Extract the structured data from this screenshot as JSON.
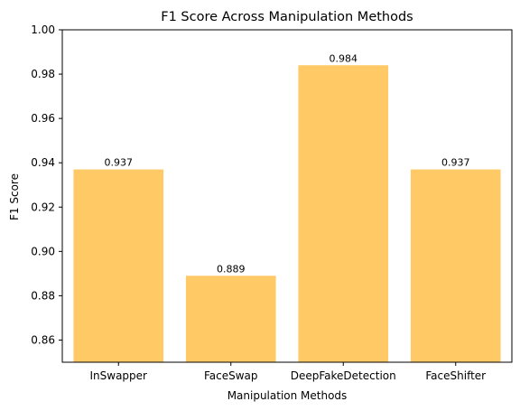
{
  "chart_data": {
    "type": "bar",
    "title": "F1 Score Across Manipulation Methods",
    "xlabel": "Manipulation Methods",
    "ylabel": "F1 Score",
    "categories": [
      "InSwapper",
      "FaceSwap",
      "DeepFakeDetection",
      "FaceShifter"
    ],
    "values": [
      0.937,
      0.889,
      0.984,
      0.937
    ],
    "data_labels": [
      "0.937",
      "0.889",
      "0.984",
      "0.937"
    ],
    "ylim": [
      0.85,
      1.0
    ],
    "yticks": [
      0.86,
      0.88,
      0.9,
      0.92,
      0.94,
      0.96,
      0.98,
      1.0
    ],
    "ytick_labels": [
      "0.86",
      "0.88",
      "0.90",
      "0.92",
      "0.94",
      "0.96",
      "0.98",
      "1.00"
    ],
    "bar_color": "#ffc966",
    "grid": false,
    "legend": "none"
  }
}
